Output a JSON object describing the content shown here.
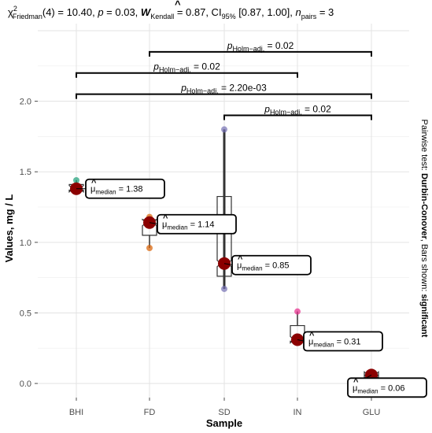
{
  "chart_data": {
    "type": "boxplot-dotplot",
    "title": {
      "chi": "χ",
      "chi_sup": "2",
      "chi_sub": "Friedman",
      "part1": "(4) = 10.40, ",
      "p_sym": "p",
      "part2": " = 0.03, ",
      "w_sym": "W",
      "w_hat": "^",
      "w_sub": "Kendall",
      "part3": " = 0.87, CI",
      "ci_sub": "95%",
      "part4": " [0.87, 1.00], ",
      "n_sym": "n",
      "n_sub": "pairs",
      "part5": " = 3"
    },
    "xlabel": "Sample",
    "ylabel": "Values, mg / L",
    "categories": [
      "BHI",
      "FD",
      "SD",
      "IN",
      "GLU"
    ],
    "yticks": [
      "0.0",
      "0.5",
      "1.0",
      "1.5",
      "2.0"
    ],
    "ylim": [
      -0.1,
      2.55
    ],
    "points": [
      {
        "category": "BHI",
        "values": [
          1.44,
          1.38,
          1.36
        ],
        "color": "#1b9e77"
      },
      {
        "category": "FD",
        "values": [
          1.18,
          1.14,
          0.96
        ],
        "color": "#d95f02"
      },
      {
        "category": "SD",
        "values": [
          1.8,
          0.85,
          0.67
        ],
        "color": "#7570b3"
      },
      {
        "category": "IN",
        "values": [
          0.51,
          0.31,
          0.29
        ],
        "color": "#e7298a"
      },
      {
        "category": "GLU",
        "values": [
          0.06,
          0.06,
          0.05
        ],
        "color": "#66a61e"
      }
    ],
    "medians": [
      {
        "category": "BHI",
        "value": 1.38,
        "label_mu": "μ",
        "label_sub": "median",
        "label_val": " = 1.38"
      },
      {
        "category": "FD",
        "value": 1.14,
        "label_mu": "μ",
        "label_sub": "median",
        "label_val": " = 1.14"
      },
      {
        "category": "SD",
        "value": 0.85,
        "label_mu": "μ",
        "label_sub": "median",
        "label_val": " = 0.85"
      },
      {
        "category": "IN",
        "value": 0.31,
        "label_mu": "μ",
        "label_sub": "median",
        "label_val": " = 0.31"
      },
      {
        "category": "GLU",
        "value": 0.06,
        "label_mu": "μ",
        "label_sub": "median",
        "label_val": " = 0.06"
      }
    ],
    "comparisons": [
      {
        "from": "FD",
        "to": "GLU",
        "level": 2.35,
        "p": "p",
        "sub": "Holm−adj.",
        "val": " = 0.02"
      },
      {
        "from": "BHI",
        "to": "IN",
        "level": 2.2,
        "p": "p",
        "sub": "Holm−adj.",
        "val": " = 0.02"
      },
      {
        "from": "BHI",
        "to": "GLU",
        "level": 2.05,
        "p": "p",
        "sub": "Holm−adj.",
        "val": " = 2.20e-03"
      },
      {
        "from": "SD",
        "to": "GLU",
        "level": 1.9,
        "p": "p",
        "sub": "Holm−adj.",
        "val": " = 0.02"
      }
    ],
    "caption": {
      "part1": "Pairwise test: ",
      "part2": "Durbin-Conover",
      "part3": ", Bars shown: ",
      "part4": "significant"
    },
    "median_color": "#8b0000",
    "grid": true
  }
}
